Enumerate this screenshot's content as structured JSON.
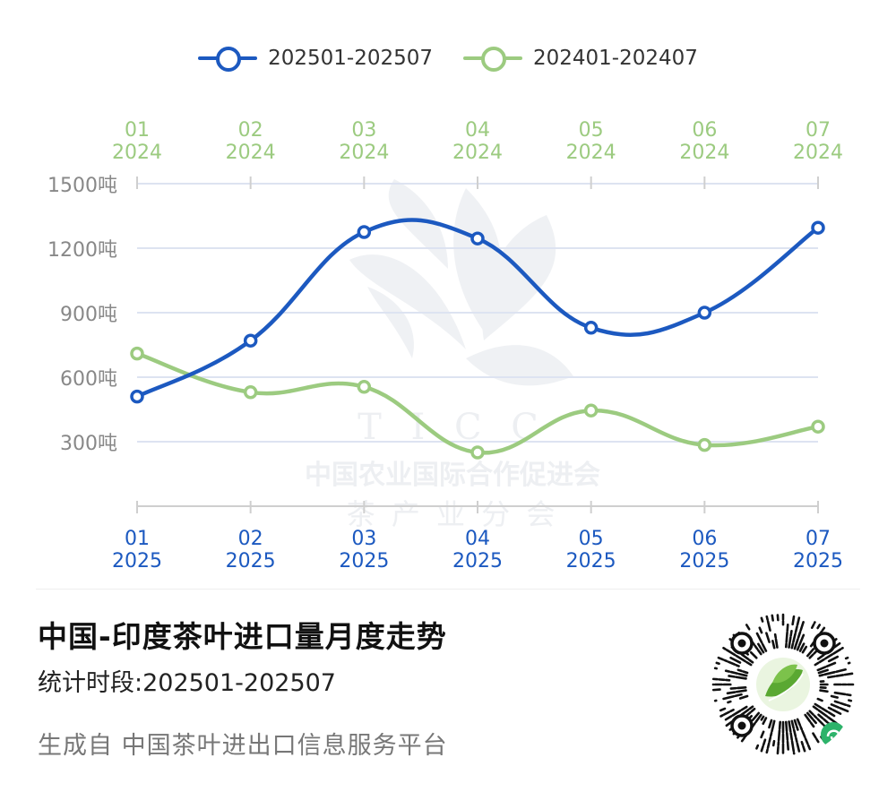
{
  "legend": {
    "series_2025": "202501-202507",
    "series_2024": "202401-202407"
  },
  "colors": {
    "series_2025": "#1c59c0",
    "series_2024": "#9ccb80",
    "grid": "#dde3f1",
    "axis_label": "#888888",
    "watermark": "#eef0f3"
  },
  "watermark": {
    "letters": "T I C C",
    "org_name": "中国农业国际合作促进会",
    "branch": "茶 产 业 分 会"
  },
  "chart_data": {
    "type": "line",
    "categories_top": [
      [
        "01",
        "2024"
      ],
      [
        "02",
        "2024"
      ],
      [
        "03",
        "2024"
      ],
      [
        "04",
        "2024"
      ],
      [
        "05",
        "2024"
      ],
      [
        "06",
        "2024"
      ],
      [
        "07",
        "2024"
      ]
    ],
    "categories_bottom": [
      [
        "01",
        "2025"
      ],
      [
        "02",
        "2025"
      ],
      [
        "03",
        "2025"
      ],
      [
        "04",
        "2025"
      ],
      [
        "05",
        "2025"
      ],
      [
        "06",
        "2025"
      ],
      [
        "07",
        "2025"
      ]
    ],
    "y_ticks": [
      "1500吨",
      "1200吨",
      "900吨",
      "600吨",
      "300吨"
    ],
    "y_tick_values": [
      1500,
      1200,
      900,
      600,
      300
    ],
    "ylim": [
      0,
      1500
    ],
    "grid": true,
    "legend_position": "top-center",
    "series": [
      {
        "name": "202501-202507",
        "key": "series_2025",
        "values": [
          510,
          770,
          1275,
          1245,
          830,
          900,
          1295
        ]
      },
      {
        "name": "202401-202407",
        "key": "series_2024",
        "values": [
          710,
          530,
          555,
          250,
          445,
          285,
          370
        ]
      }
    ]
  },
  "footer": {
    "title": "中国-印度茶叶进口量月度走势",
    "period": "统计时段:202501-202507",
    "source": "生成自 中国茶叶进出口信息服务平台"
  },
  "qr": {
    "icon": "mini-program-qr-icon"
  }
}
